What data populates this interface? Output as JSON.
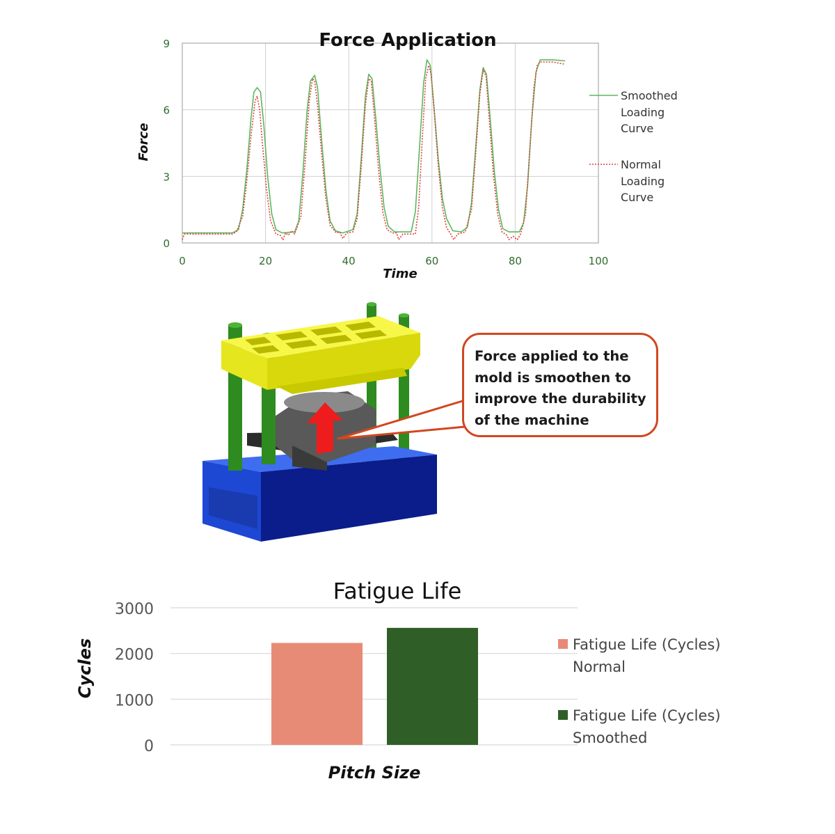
{
  "chart_data": [
    {
      "type": "line",
      "title": "Force Application",
      "xlabel": "Time",
      "ylabel": "Force",
      "xlim": [
        0,
        100
      ],
      "ylim": [
        0,
        9
      ],
      "xticks": [
        0,
        20,
        40,
        60,
        80,
        100
      ],
      "yticks": [
        0,
        3,
        6,
        9
      ],
      "grid": true,
      "legend_position": "right",
      "series": [
        {
          "name": "Smoothed Loading Curve",
          "color": "#5cb85c",
          "style": "solid",
          "points": [
            [
              0,
              0.45
            ],
            [
              12,
              0.45
            ],
            [
              13.5,
              0.6
            ],
            [
              14.5,
              1.5
            ],
            [
              15.5,
              3.3
            ],
            [
              16.5,
              5.6
            ],
            [
              17.2,
              6.8
            ],
            [
              18,
              7.0
            ],
            [
              18.8,
              6.8
            ],
            [
              19.6,
              5.3
            ],
            [
              20.5,
              3.0
            ],
            [
              21.5,
              1.3
            ],
            [
              22.5,
              0.6
            ],
            [
              24,
              0.45
            ],
            [
              27,
              0.5
            ],
            [
              28,
              1.0
            ],
            [
              29,
              3.2
            ],
            [
              30,
              6.0
            ],
            [
              30.8,
              7.3
            ],
            [
              31.8,
              7.55
            ],
            [
              32.5,
              7.0
            ],
            [
              33.5,
              4.6
            ],
            [
              34.5,
              2.4
            ],
            [
              35.5,
              1.0
            ],
            [
              36.8,
              0.55
            ],
            [
              38.5,
              0.45
            ],
            [
              41,
              0.6
            ],
            [
              42,
              1.3
            ],
            [
              43,
              3.8
            ],
            [
              44,
              6.6
            ],
            [
              44.8,
              7.6
            ],
            [
              45.6,
              7.4
            ],
            [
              46.5,
              5.6
            ],
            [
              47.5,
              3.4
            ],
            [
              48.5,
              1.6
            ],
            [
              49.5,
              0.75
            ],
            [
              51,
              0.5
            ],
            [
              55,
              0.5
            ],
            [
              56,
              1.4
            ],
            [
              57,
              4.3
            ],
            [
              58,
              7.2
            ],
            [
              58.8,
              8.25
            ],
            [
              59.6,
              8.0
            ],
            [
              60.4,
              6.3
            ],
            [
              61.5,
              3.8
            ],
            [
              62.5,
              2.0
            ],
            [
              63.5,
              1.1
            ],
            [
              65,
              0.55
            ],
            [
              67,
              0.5
            ],
            [
              68.5,
              0.7
            ],
            [
              69.5,
              1.8
            ],
            [
              70.5,
              4.3
            ],
            [
              71.5,
              6.9
            ],
            [
              72.3,
              7.9
            ],
            [
              73.1,
              7.6
            ],
            [
              74,
              5.6
            ],
            [
              75,
              3.2
            ],
            [
              76,
              1.5
            ],
            [
              77,
              0.65
            ],
            [
              78.5,
              0.5
            ],
            [
              81,
              0.5
            ],
            [
              82,
              0.9
            ],
            [
              83,
              2.6
            ],
            [
              84,
              5.6
            ],
            [
              85,
              7.7
            ],
            [
              86,
              8.25
            ],
            [
              89,
              8.25
            ],
            [
              92,
              8.2
            ]
          ]
        },
        {
          "name": "Normal Loading Curve",
          "color": "#e03c3c",
          "style": "dotted",
          "points": [
            [
              0,
              0.15
            ],
            [
              0.5,
              0.4
            ],
            [
              12,
              0.4
            ],
            [
              13,
              0.5
            ],
            [
              14.5,
              1.2
            ],
            [
              15.5,
              2.8
            ],
            [
              16.5,
              4.8
            ],
            [
              17.5,
              6.4
            ],
            [
              18,
              6.6
            ],
            [
              18.6,
              6.0
            ],
            [
              19.3,
              4.4
            ],
            [
              20.2,
              2.5
            ],
            [
              21.2,
              1.0
            ],
            [
              22.5,
              0.4
            ],
            [
              23.5,
              0.35
            ],
            [
              24.2,
              0.15
            ],
            [
              24.8,
              0.45
            ],
            [
              25.5,
              0.35
            ],
            [
              26.2,
              0.55
            ],
            [
              27,
              0.4
            ],
            [
              28.5,
              1.2
            ],
            [
              29.5,
              3.6
            ],
            [
              30.5,
              6.4
            ],
            [
              31.3,
              7.4
            ],
            [
              31.8,
              7.3
            ],
            [
              32.5,
              6.2
            ],
            [
              33.5,
              4.0
            ],
            [
              34.5,
              2.0
            ],
            [
              35.5,
              0.8
            ],
            [
              37,
              0.45
            ],
            [
              37.8,
              0.5
            ],
            [
              38.6,
              0.2
            ],
            [
              39.5,
              0.45
            ],
            [
              41,
              0.5
            ],
            [
              42,
              1.1
            ],
            [
              43,
              3.4
            ],
            [
              44,
              6.2
            ],
            [
              44.8,
              7.4
            ],
            [
              45.4,
              7.3
            ],
            [
              46.2,
              5.6
            ],
            [
              47.2,
              3.2
            ],
            [
              48.2,
              1.4
            ],
            [
              49.2,
              0.6
            ],
            [
              50.5,
              0.45
            ],
            [
              51.5,
              0.45
            ],
            [
              52,
              0.15
            ],
            [
              53,
              0.4
            ],
            [
              56,
              0.4
            ],
            [
              56.8,
              1.6
            ],
            [
              57.6,
              4.4
            ],
            [
              58.5,
              7.4
            ],
            [
              59.2,
              8.0
            ],
            [
              59.8,
              7.6
            ],
            [
              60.6,
              5.8
            ],
            [
              61.5,
              3.5
            ],
            [
              62.5,
              1.6
            ],
            [
              63.5,
              0.7
            ],
            [
              64.5,
              0.4
            ],
            [
              65.2,
              0.15
            ],
            [
              66.2,
              0.4
            ],
            [
              68,
              0.5
            ],
            [
              69.5,
              1.5
            ],
            [
              70.5,
              4.0
            ],
            [
              71.5,
              6.7
            ],
            [
              72.3,
              7.8
            ],
            [
              73,
              7.5
            ],
            [
              73.8,
              5.5
            ],
            [
              74.8,
              3.0
            ],
            [
              75.8,
              1.3
            ],
            [
              76.8,
              0.5
            ],
            [
              78,
              0.35
            ],
            [
              78.5,
              0.15
            ],
            [
              79.5,
              0.3
            ],
            [
              80.5,
              0.15
            ],
            [
              81.3,
              0.4
            ],
            [
              82.5,
              1.3
            ],
            [
              83.5,
              4.2
            ],
            [
              84.5,
              7.0
            ],
            [
              85.3,
              8.0
            ],
            [
              86,
              8.15
            ],
            [
              89,
              8.15
            ],
            [
              92,
              8.05
            ]
          ]
        }
      ]
    },
    {
      "type": "bar",
      "title": "Fatigue Life",
      "xlabel": "Pitch Size",
      "ylabel": "Cycles",
      "ylim": [
        0,
        3000
      ],
      "yticks": [
        0,
        1000,
        2000,
        3000
      ],
      "grid": true,
      "legend_position": "right",
      "series": [
        {
          "name_line1": "Fatigue Life (Cycles)",
          "name_line2": "Normal",
          "value": 2230,
          "color": "#e88b76"
        },
        {
          "name_line1": "Fatigue Life (Cycles)",
          "name_line2": "Smoothed",
          "value": 2560,
          "color": "#2f5f26"
        }
      ]
    }
  ],
  "callout": {
    "lines": [
      "Force applied to the",
      "mold is smoothen to",
      "improve the durability",
      "of the machine"
    ],
    "border_color": "#d1471f"
  },
  "machine": {
    "colors": {
      "top_plate": "#f2f22a",
      "columns": "#2e8b1f",
      "mold": "#555555",
      "base": "#1e4fd6",
      "arrow": "#ee1c1c"
    }
  }
}
